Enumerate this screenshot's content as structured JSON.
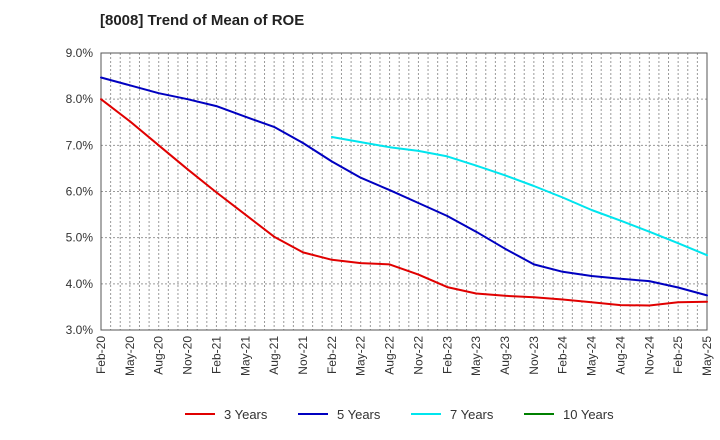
{
  "chart_data": {
    "type": "line",
    "title": "[8008]  Trend of Mean of ROE",
    "xlabel": "",
    "ylabel": "",
    "y_unit": "%",
    "ylim": [
      3.0,
      9.0
    ],
    "yticks": [
      "3.0%",
      "4.0%",
      "5.0%",
      "6.0%",
      "7.0%",
      "8.0%",
      "9.0%"
    ],
    "x_start": "Feb-20",
    "x_ticks": [
      "Feb-20",
      "May-20",
      "Aug-20",
      "Nov-20",
      "Feb-21",
      "May-21",
      "Aug-21",
      "Nov-21",
      "Feb-22",
      "May-22",
      "Aug-22",
      "Nov-22",
      "Feb-23",
      "May-23",
      "Aug-23",
      "Nov-23",
      "Feb-24",
      "May-24",
      "Aug-24",
      "Nov-24",
      "Feb-25",
      "May-25"
    ],
    "grid": true,
    "legend_position": "bottom",
    "series": [
      {
        "name": "3 Years",
        "color": "#e00000",
        "points": [
          [
            0,
            8.0
          ],
          [
            3,
            7.52
          ],
          [
            6,
            7.0
          ],
          [
            9,
            6.48
          ],
          [
            12,
            5.98
          ],
          [
            15,
            5.5
          ],
          [
            18,
            5.02
          ],
          [
            21,
            4.68
          ],
          [
            24,
            4.52
          ],
          [
            27,
            4.45
          ],
          [
            30,
            4.42
          ],
          [
            33,
            4.2
          ],
          [
            36,
            3.93
          ],
          [
            39,
            3.79
          ],
          [
            42,
            3.74
          ],
          [
            45,
            3.71
          ],
          [
            48,
            3.66
          ],
          [
            51,
            3.6
          ],
          [
            54,
            3.54
          ],
          [
            57,
            3.53
          ],
          [
            60,
            3.6
          ],
          [
            63,
            3.61
          ]
        ]
      },
      {
        "name": "5 Years",
        "color": "#0000c0",
        "points": [
          [
            0,
            8.47
          ],
          [
            3,
            8.3
          ],
          [
            6,
            8.13
          ],
          [
            9,
            8.0
          ],
          [
            12,
            7.85
          ],
          [
            15,
            7.62
          ],
          [
            18,
            7.4
          ],
          [
            21,
            7.05
          ],
          [
            24,
            6.65
          ],
          [
            27,
            6.3
          ],
          [
            30,
            6.03
          ],
          [
            33,
            5.75
          ],
          [
            36,
            5.47
          ],
          [
            39,
            5.13
          ],
          [
            42,
            4.76
          ],
          [
            45,
            4.42
          ],
          [
            48,
            4.26
          ],
          [
            51,
            4.17
          ],
          [
            54,
            4.11
          ],
          [
            57,
            4.06
          ],
          [
            60,
            3.92
          ],
          [
            63,
            3.75
          ]
        ]
      },
      {
        "name": "7 Years",
        "color": "#00e5ee",
        "points": [
          [
            24,
            7.18
          ],
          [
            27,
            7.07
          ],
          [
            30,
            6.96
          ],
          [
            33,
            6.88
          ],
          [
            36,
            6.76
          ],
          [
            39,
            6.56
          ],
          [
            42,
            6.35
          ],
          [
            45,
            6.12
          ],
          [
            48,
            5.87
          ],
          [
            51,
            5.6
          ],
          [
            54,
            5.37
          ],
          [
            57,
            5.13
          ],
          [
            60,
            4.88
          ],
          [
            63,
            4.62
          ]
        ]
      },
      {
        "name": "10 Years",
        "color": "#008000",
        "points": []
      }
    ]
  }
}
